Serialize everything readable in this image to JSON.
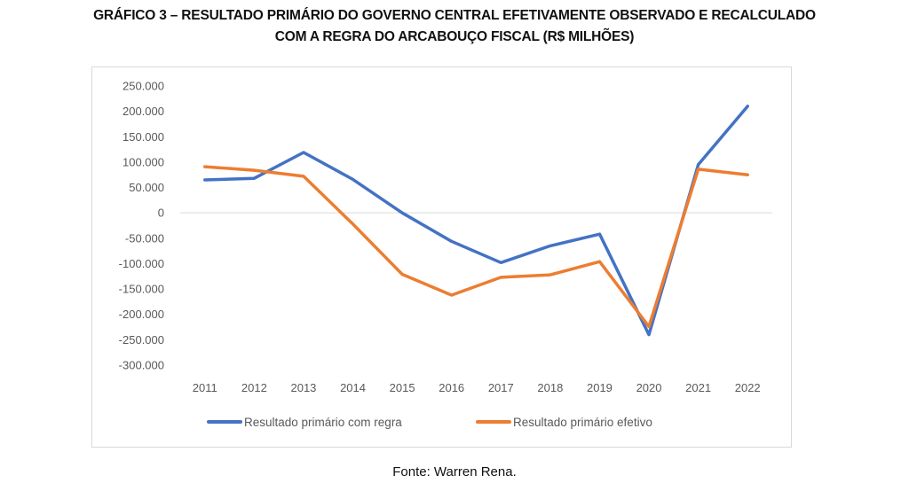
{
  "chart_data": {
    "type": "line",
    "title": "GRÁFICO 3 – RESULTADO PRIMÁRIO DO GOVERNO CENTRAL EFETIVAMENTE OBSERVADO E RECALCULADO COM A REGRA DO ARCABOUÇO FISCAL (R$ MILHÕES)",
    "title_lines": [
      "GRÁFICO 3 – RESULTADO PRIMÁRIO DO GOVERNO CENTRAL EFETIVAMENTE OBSERVADO E RECALCULADO",
      "COM A REGRA DO ARCABOUÇO FISCAL (R$ MILHÕES)"
    ],
    "xlabel": "",
    "ylabel": "",
    "categories": [
      "2011",
      "2012",
      "2013",
      "2014",
      "2015",
      "2016",
      "2017",
      "2018",
      "2019",
      "2020",
      "2021",
      "2022"
    ],
    "ylim": [
      -300000,
      250000
    ],
    "yticks": [
      250000,
      200000,
      150000,
      100000,
      50000,
      0,
      -50000,
      -100000,
      -150000,
      -200000,
      -250000,
      -300000
    ],
    "ytick_labels": [
      "250.000",
      "200.000",
      "150.000",
      "100.000",
      "50.000",
      "0",
      "-50.000",
      "-100.000",
      "-150.000",
      "-200.000",
      "-250.000",
      "-300.000"
    ],
    "grid": "zero-line only",
    "legend_position": "bottom",
    "series": [
      {
        "name": "Resultado primário com regra",
        "color": "#4472C4",
        "values": [
          65000,
          68000,
          119000,
          66000,
          0,
          -56000,
          -98000,
          -65000,
          -42000,
          -240000,
          95000,
          210000
        ]
      },
      {
        "name": "Resultado primário efetivo",
        "color": "#ED7D31",
        "values": [
          91000,
          84000,
          72000,
          -22000,
          -121000,
          -162000,
          -127000,
          -122000,
          -96000,
          -224000,
          86000,
          75000
        ]
      }
    ]
  },
  "source": "Fonte: Warren Rena."
}
